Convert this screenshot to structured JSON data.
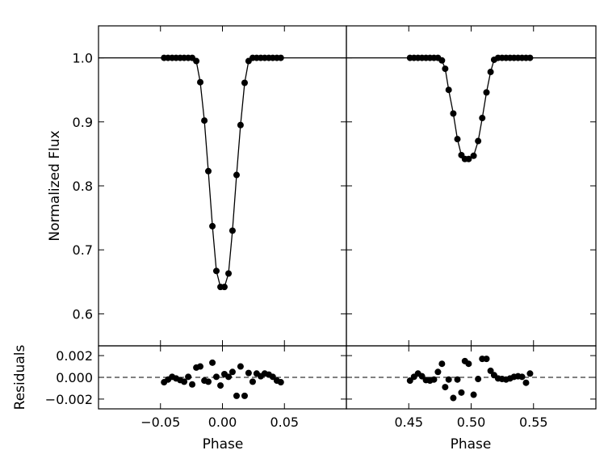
{
  "chart_data": [
    {
      "panel": "top-left",
      "type": "scatter",
      "ylabel": "Normalized Flux",
      "xlim": [
        -0.1,
        0.1
      ],
      "ylim": [
        0.55,
        1.05
      ],
      "xticks": [
        -0.05,
        0.0,
        0.05
      ],
      "yticks": [
        0.6,
        0.7,
        0.8,
        0.9,
        1.0
      ],
      "ytick_labels": [
        "0.6",
        "0.7",
        "0.8",
        "0.9",
        "1.0"
      ],
      "model_line": true,
      "x": [
        -0.0471,
        -0.0439,
        -0.0406,
        -0.0374,
        -0.0341,
        -0.0309,
        -0.0276,
        -0.0244,
        -0.0211,
        -0.0179,
        -0.0146,
        -0.0114,
        -0.0081,
        -0.0049,
        -0.0016,
        0.0016,
        0.0049,
        0.0081,
        0.0114,
        0.0146,
        0.0179,
        0.0211,
        0.0244,
        0.0276,
        0.0309,
        0.0341,
        0.0374,
        0.0406,
        0.0439,
        0.0471
      ],
      "y": [
        1.0,
        1.0,
        1.0,
        1.0,
        1.0,
        1.0,
        1.0,
        1.0,
        0.995,
        0.962,
        0.902,
        0.823,
        0.737,
        0.667,
        0.642,
        0.642,
        0.663,
        0.73,
        0.817,
        0.895,
        0.961,
        0.995,
        1.0,
        1.0,
        1.0,
        1.0,
        1.0,
        1.0,
        1.0,
        1.0
      ]
    },
    {
      "panel": "top-right",
      "type": "scatter",
      "xlim": [
        0.4,
        0.6
      ],
      "ylim": [
        0.55,
        1.05
      ],
      "xticks": [
        0.45,
        0.5,
        0.55
      ],
      "yticks": [
        0.6,
        0.7,
        0.8,
        0.9,
        1.0
      ],
      "model_line": true,
      "x": [
        0.451,
        0.4542,
        0.4574,
        0.4606,
        0.4638,
        0.467,
        0.4702,
        0.4734,
        0.4766,
        0.4792,
        0.482,
        0.4857,
        0.489,
        0.4922,
        0.495,
        0.498,
        0.502,
        0.5056,
        0.5089,
        0.5123,
        0.5156,
        0.5184,
        0.5216,
        0.5248,
        0.528,
        0.5312,
        0.5344,
        0.5376,
        0.5408,
        0.544,
        0.5472
      ],
      "y": [
        1.0,
        1.0,
        1.0,
        1.0,
        1.0,
        1.0,
        1.0,
        1.0,
        0.996,
        0.983,
        0.95,
        0.913,
        0.873,
        0.848,
        0.842,
        0.842,
        0.847,
        0.87,
        0.906,
        0.946,
        0.978,
        0.997,
        1.0,
        1.0,
        1.0,
        1.0,
        1.0,
        1.0,
        1.0,
        1.0,
        1.0
      ]
    },
    {
      "panel": "bottom-left",
      "type": "scatter",
      "xlabel": "Phase",
      "ylabel": "Residuals",
      "xlim": [
        -0.1,
        0.1
      ],
      "ylim": [
        -0.0029,
        0.0029
      ],
      "xticks": [
        -0.05,
        0.0,
        0.05
      ],
      "xtick_labels": [
        "−0.05",
        "0.00",
        "0.05"
      ],
      "yticks": [
        -0.002,
        0.0,
        0.002
      ],
      "ytick_labels": [
        "−0.002",
        "0.000",
        "0.002"
      ],
      "zero_line": "dashed",
      "error_bar": 0.00025,
      "x": [
        -0.0471,
        -0.0439,
        -0.0406,
        -0.0374,
        -0.0341,
        -0.0309,
        -0.0276,
        -0.0244,
        -0.0211,
        -0.0179,
        -0.0146,
        -0.0114,
        -0.0081,
        -0.0049,
        -0.0016,
        0.0016,
        0.0049,
        0.0081,
        0.0114,
        0.0146,
        0.0179,
        0.0211,
        0.0244,
        0.0276,
        0.0309,
        0.0341,
        0.0374,
        0.0406,
        0.0439,
        0.0471
      ],
      "y": [
        -0.00045,
        -0.0002,
        5e-05,
        -0.0001,
        -0.00025,
        -0.0004,
        5e-05,
        -0.00065,
        0.0009,
        0.001,
        -0.0003,
        -0.0004,
        0.00135,
        5e-05,
        -0.00075,
        0.0003,
        5e-05,
        0.0005,
        -0.0017,
        0.001,
        -0.0017,
        0.0004,
        -0.0004,
        0.00035,
        0.0001,
        0.00035,
        0.00025,
        5e-05,
        -0.0003,
        -0.00045
      ]
    },
    {
      "panel": "bottom-right",
      "type": "scatter",
      "xlabel": "Phase",
      "xlim": [
        0.4,
        0.6
      ],
      "ylim": [
        -0.0029,
        0.0029
      ],
      "xticks": [
        0.45,
        0.5,
        0.55
      ],
      "xtick_labels": [
        "0.45",
        "0.50",
        "0.55"
      ],
      "yticks": [
        -0.002,
        0.0,
        0.002
      ],
      "zero_line": "dashed",
      "error_bar": 0.00025,
      "x": [
        0.451,
        0.4542,
        0.4574,
        0.4606,
        0.4638,
        0.467,
        0.4702,
        0.4734,
        0.4766,
        0.4792,
        0.482,
        0.4857,
        0.489,
        0.4922,
        0.495,
        0.498,
        0.502,
        0.5056,
        0.5089,
        0.5123,
        0.5156,
        0.5184,
        0.5216,
        0.5248,
        0.528,
        0.5312,
        0.5344,
        0.5376,
        0.5408,
        0.544,
        0.5472
      ],
      "y": [
        -0.0003,
        5e-05,
        0.00035,
        0.0001,
        -0.00025,
        -0.0003,
        -0.0002,
        0.0005,
        0.00125,
        -0.0009,
        -0.0002,
        -0.0019,
        -0.0002,
        -0.0014,
        0.0015,
        0.00125,
        -0.0016,
        -0.00015,
        0.0017,
        0.0017,
        0.0006,
        0.0002,
        -0.0001,
        -0.00015,
        -0.0002,
        -0.0001,
        5e-05,
        0.0001,
        5e-05,
        -0.0005,
        0.00035
      ]
    }
  ]
}
